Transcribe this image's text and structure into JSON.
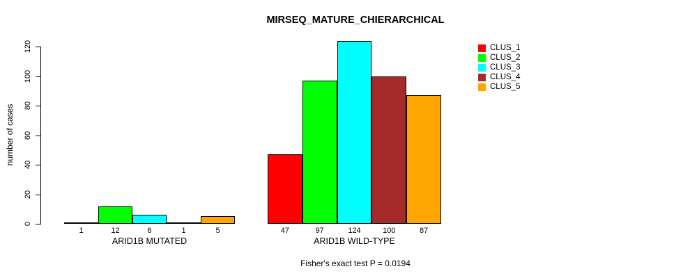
{
  "title": "MIRSEQ_MATURE_CHIERARCHICAL",
  "footer": "Fisher's exact test P = 0.0194",
  "chart_data": {
    "type": "bar",
    "title": "MIRSEQ_MATURE_CHIERARCHICAL",
    "xlabel": "",
    "ylabel": "number of cases",
    "ylim": [
      0,
      124
    ],
    "yticks": [
      0,
      20,
      40,
      60,
      80,
      100,
      120
    ],
    "grid": false,
    "legend_position": "top-right",
    "background": "#ffffff",
    "categories": [
      "ARID1B MUTATED",
      "ARID1B WILD-TYPE"
    ],
    "groups": [
      {
        "label": "ARID1B MUTATED",
        "values": [
          1,
          12,
          6,
          1,
          5
        ]
      },
      {
        "label": "ARID1B WILD-TYPE",
        "values": [
          47,
          97,
          124,
          100,
          87
        ]
      }
    ],
    "series": [
      {
        "name": "CLUS_1",
        "color": "#FF0000"
      },
      {
        "name": "CLUS_2",
        "color": "#00FF00"
      },
      {
        "name": "CLUS_3",
        "color": "#00FFFF"
      },
      {
        "name": "CLUS_4",
        "color": "#A52A2A"
      },
      {
        "name": "CLUS_5",
        "color": "#FFA500"
      }
    ],
    "annotation": "Fisher's exact test P = 0.0194"
  }
}
